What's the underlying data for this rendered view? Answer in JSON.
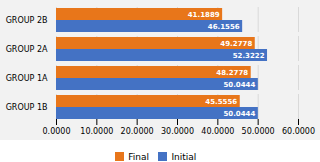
{
  "chart_data": {
    "type": "bar",
    "orientation": "horizontal",
    "categories": [
      "GROUP 1B",
      "GROUP 1A",
      "GROUP 2A",
      "GROUP 2B"
    ],
    "series": [
      {
        "name": "Final",
        "color": "#E8761A",
        "values": [
          45.5556,
          48.2778,
          49.2778,
          41.1889
        ]
      },
      {
        "name": "Initial",
        "color": "#4472C4",
        "values": [
          50.0444,
          50.0444,
          52.3222,
          46.1556
        ]
      }
    ],
    "xlim": [
      0,
      60
    ],
    "xticks": [
      {
        "value": 0,
        "label": "0.0000"
      },
      {
        "value": 10,
        "label": "10.0000"
      },
      {
        "value": 20,
        "label": "20.0000"
      },
      {
        "value": 30,
        "label": "30.0000"
      },
      {
        "value": 40,
        "label": "40.0000"
      },
      {
        "value": 50,
        "label": "50.0000"
      },
      {
        "value": 60,
        "label": "60.0000"
      }
    ],
    "grid": true,
    "legend": "bottom",
    "data_labels": true
  }
}
